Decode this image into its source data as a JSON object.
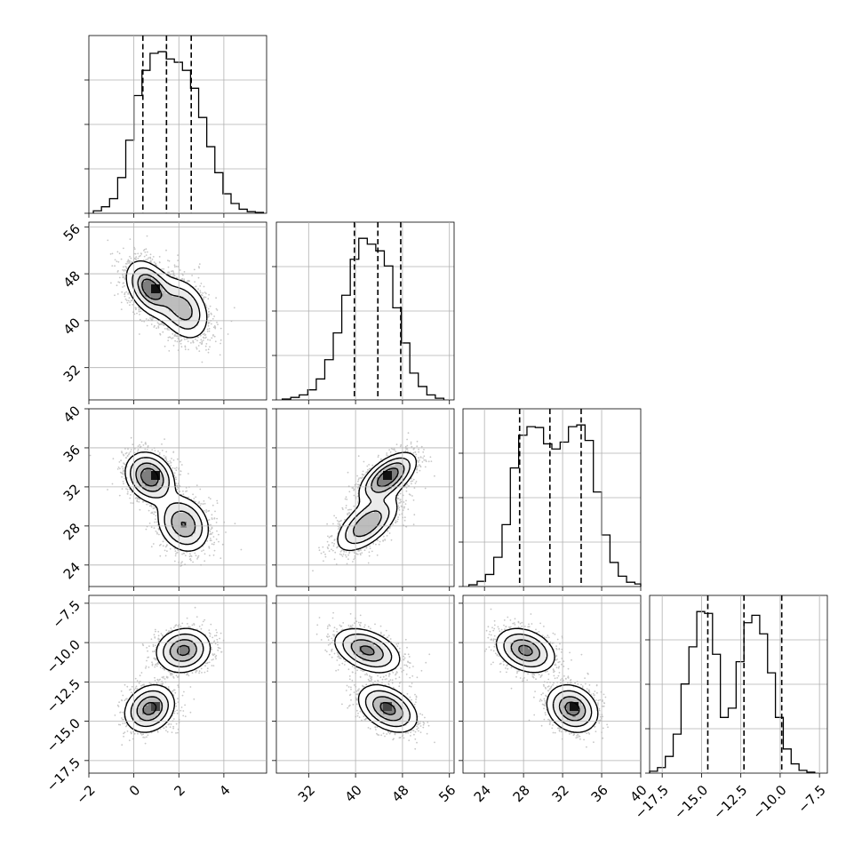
{
  "chart_data": {
    "type": "corner",
    "title": "",
    "parameters": [
      {
        "index": 0,
        "label": "",
        "range": [
          -2.0,
          5.9
        ],
        "ticks": [
          -2,
          0,
          2,
          4
        ],
        "tick_labels": [
          "−2",
          "0",
          "2",
          "4"
        ],
        "quantiles": [
          0.4,
          1.45,
          2.55
        ],
        "hist": {
          "edges_start": -1.8,
          "bin_width": 0.36,
          "counts": [
            3,
            8,
            18,
            44,
            90,
            145,
            176,
            197,
            199,
            190,
            186,
            176,
            154,
            118,
            82,
            50,
            24,
            12,
            5,
            2,
            1
          ]
        }
      },
      {
        "index": 1,
        "label": "",
        "range": [
          26.5,
          56.8
        ],
        "ticks": [
          32,
          40,
          48,
          56
        ],
        "tick_labels": [
          "32",
          "40",
          "48",
          "56"
        ],
        "quantiles": [
          39.8,
          43.8,
          47.7
        ],
        "hist": {
          "edges_start": 27.5,
          "bin_width": 1.45,
          "counts": [
            1,
            3,
            6,
            12,
            25,
            48,
            80,
            125,
            168,
            193,
            186,
            178,
            160,
            110,
            68,
            32,
            16,
            6,
            2
          ]
        }
      },
      {
        "index": 2,
        "label": "",
        "range": [
          21.8,
          40.0
        ],
        "ticks": [
          24,
          28,
          32,
          36,
          40
        ],
        "tick_labels": [
          "24",
          "28",
          "32",
          "36",
          "40"
        ],
        "quantiles": [
          27.6,
          30.7,
          33.9
        ],
        "hist": {
          "edges_start": 22.4,
          "bin_width": 0.85,
          "counts": [
            2,
            6,
            14,
            34,
            72,
            138,
            176,
            186,
            185,
            166,
            160,
            168,
            186,
            188,
            170,
            110,
            60,
            28,
            12,
            5,
            3
          ]
        }
      },
      {
        "index": 3,
        "label": "",
        "range": [
          -18.3,
          -7.0
        ],
        "ticks": [
          -17.5,
          -15.0,
          -12.5,
          -10.0,
          -7.5
        ],
        "tick_labels": [
          "−17.5",
          "−15.0",
          "−12.5",
          "−10.0",
          "−7.5"
        ],
        "quantiles": [
          -14.6,
          -12.3,
          -9.9
        ],
        "hist": {
          "edges_start": -18.3,
          "bin_width": 0.5,
          "counts": [
            2,
            6,
            18,
            42,
            96,
            136,
            174,
            172,
            128,
            60,
            70,
            120,
            162,
            170,
            150,
            108,
            60,
            26,
            10,
            3,
            1
          ]
        }
      }
    ],
    "modes": [
      {
        "weight": 0.5,
        "mean": [
          0.7,
          45.5,
          33.0,
          -14.2
        ],
        "std": [
          0.55,
          2.5,
          1.3,
          0.75
        ],
        "corr01": -0.4,
        "corr02": -0.2,
        "corr12": 0.6,
        "corr03": 0.2,
        "corr13": -0.4,
        "corr23": -0.2
      },
      {
        "weight": 0.5,
        "mean": [
          2.2,
          42.0,
          28.2,
          -10.5
        ],
        "std": [
          0.6,
          2.8,
          1.5,
          0.7
        ],
        "corr01": -0.3,
        "corr02": -0.2,
        "corr12": 0.6,
        "corr03": 0.1,
        "corr13": -0.4,
        "corr23": -0.3
      }
    ],
    "grid": true,
    "legend": "none"
  }
}
